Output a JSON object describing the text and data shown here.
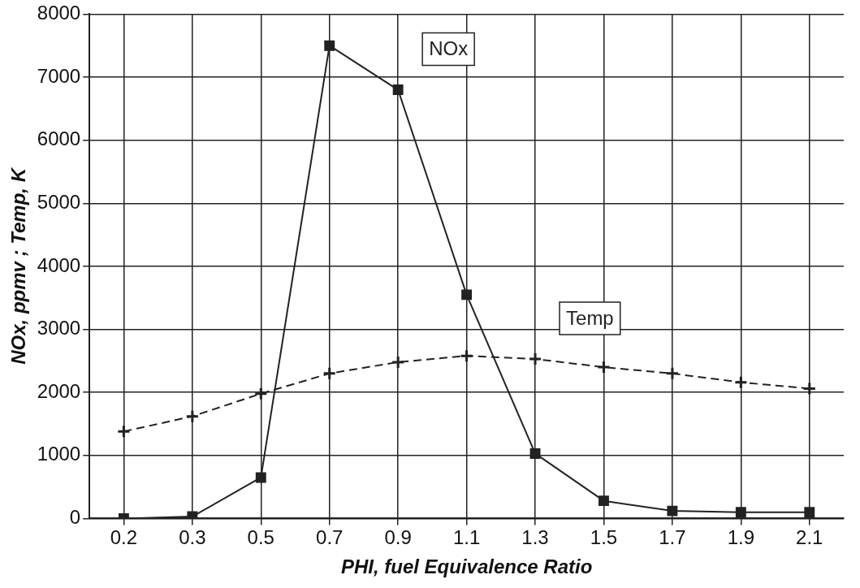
{
  "chart_data": {
    "type": "line",
    "xlabel": "PHI, fuel Equivalence Ratio",
    "ylabel": "NOx, ppmv ; Temp, K",
    "categories": [
      "0.2",
      "0.3",
      "0.5",
      "0.7",
      "0.9",
      "1.1",
      "1.3",
      "1.5",
      "1.7",
      "1.9",
      "2.1"
    ],
    "series": [
      {
        "name": "NOx",
        "color": "#222222",
        "marker": "square",
        "line_style": "solid",
        "values": [
          0,
          30,
          650,
          7500,
          6800,
          3550,
          1030,
          280,
          120,
          100,
          100
        ]
      },
      {
        "name": "Temp",
        "color": "#222222",
        "marker": "cross",
        "line_style": "dashed",
        "values": [
          1380,
          1620,
          1980,
          2300,
          2480,
          2580,
          2530,
          2400,
          2300,
          2160,
          2060
        ]
      }
    ],
    "ylim": [
      0,
      8000
    ],
    "yticks": [
      0,
      1000,
      2000,
      3000,
      4000,
      5000,
      6000,
      7000,
      8000
    ],
    "grid": true,
    "legend": false
  }
}
